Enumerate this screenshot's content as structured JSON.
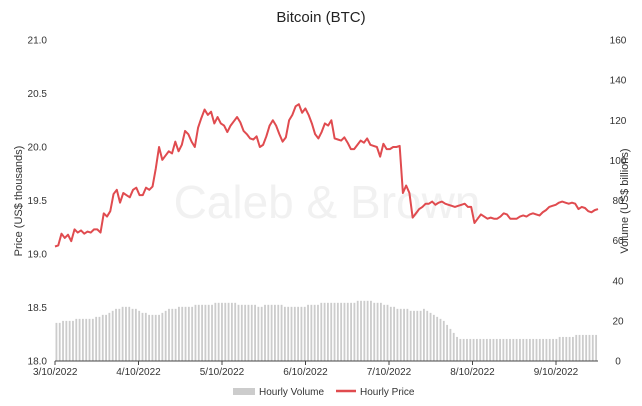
{
  "chart_data": {
    "type": "line",
    "title": "Bitcoin (BTC)",
    "watermark": "Caleb & Brown",
    "ylabel": "Price (US$ thousands)",
    "y2label": "Volume (US$ billions)",
    "ylim": [
      18.0,
      21.0
    ],
    "y2lim": [
      0,
      160
    ],
    "yticks": [
      "18.0",
      "18.5",
      "19.0",
      "19.5",
      "20.0",
      "20.5",
      "21.0"
    ],
    "y2ticks": [
      "0",
      "20",
      "40",
      "60",
      "80",
      "100",
      "120",
      "140",
      "160"
    ],
    "xticks": [
      "3/10/2022",
      "4/10/2022",
      "5/10/2022",
      "6/10/2022",
      "7/10/2022",
      "8/10/2022",
      "9/10/2022"
    ],
    "grid": false,
    "legend_position": "bottom",
    "series": [
      {
        "name": "Hourly Volume",
        "kind": "bar",
        "axis": "right",
        "color": "#cccccc",
        "values": [
          19,
          19,
          20,
          20,
          20,
          20,
          21,
          21,
          21,
          21,
          21,
          21,
          22,
          22,
          23,
          23,
          24,
          25,
          26,
          26,
          27,
          27,
          27,
          26,
          26,
          25,
          24,
          24,
          23,
          23,
          23,
          23,
          24,
          25,
          26,
          26,
          26,
          27,
          27,
          27,
          27,
          27,
          28,
          28,
          28,
          28,
          28,
          28,
          29,
          29,
          29,
          29,
          29,
          29,
          29,
          28,
          28,
          28,
          28,
          28,
          28,
          27,
          27,
          28,
          28,
          28,
          28,
          28,
          28,
          27,
          27,
          27,
          27,
          27,
          27,
          27,
          28,
          28,
          28,
          28,
          29,
          29,
          29,
          29,
          29,
          29,
          29,
          29,
          29,
          29,
          29,
          30,
          30,
          30,
          30,
          30,
          29,
          29,
          29,
          28,
          28,
          27,
          27,
          26,
          26,
          26,
          26,
          25,
          25,
          25,
          25,
          26,
          25,
          24,
          23,
          22,
          21,
          20,
          18,
          16,
          14,
          12,
          11,
          11,
          11,
          11,
          11,
          11,
          11,
          11,
          11,
          11,
          11,
          11,
          11,
          11,
          11,
          11,
          11,
          11,
          11,
          11,
          11,
          11,
          11,
          11,
          11,
          11,
          11,
          11,
          11,
          11,
          12,
          12,
          12,
          12,
          12,
          13,
          13,
          13,
          13,
          13,
          13,
          13
        ]
      },
      {
        "name": "Hourly Price",
        "kind": "line",
        "axis": "left",
        "color": "#e04b4f",
        "values": [
          19.07,
          19.08,
          19.19,
          19.15,
          19.18,
          19.12,
          19.23,
          19.2,
          19.22,
          19.19,
          19.21,
          19.2,
          19.23,
          19.23,
          19.2,
          19.38,
          19.35,
          19.4,
          19.56,
          19.6,
          19.48,
          19.57,
          19.55,
          19.53,
          19.6,
          19.62,
          19.55,
          19.55,
          19.62,
          19.6,
          19.63,
          19.8,
          20.0,
          19.88,
          19.92,
          19.96,
          19.94,
          20.05,
          19.96,
          20.02,
          20.15,
          20.12,
          20.05,
          20.0,
          20.18,
          20.27,
          20.35,
          20.3,
          20.33,
          20.22,
          20.28,
          20.22,
          20.2,
          20.14,
          20.2,
          20.24,
          20.28,
          20.23,
          20.15,
          20.12,
          20.08,
          20.07,
          20.1,
          20.0,
          20.02,
          20.1,
          20.2,
          20.25,
          20.2,
          20.12,
          20.05,
          20.09,
          20.25,
          20.3,
          20.38,
          20.4,
          20.32,
          20.36,
          20.3,
          20.22,
          20.12,
          20.08,
          20.14,
          20.22,
          20.2,
          20.25,
          20.08,
          20.07,
          20.06,
          20.09,
          20.04,
          19.98,
          19.98,
          20.02,
          20.06,
          20.04,
          20.08,
          20.02,
          20.01,
          20.0,
          19.91,
          20.03,
          19.98,
          19.98,
          20.0,
          20.0,
          20.01,
          19.57,
          19.64,
          19.57,
          19.34,
          19.38,
          19.42,
          19.44,
          19.47,
          19.47,
          19.49,
          19.46,
          19.48,
          19.49,
          19.47,
          19.46,
          19.45,
          19.44,
          19.45,
          19.46,
          19.47,
          19.44,
          19.44,
          19.29,
          19.33,
          19.37,
          19.35,
          19.33,
          19.34,
          19.33,
          19.33,
          19.35,
          19.38,
          19.37,
          19.33,
          19.33,
          19.33,
          19.35,
          19.36,
          19.35,
          19.37,
          19.38,
          19.37,
          19.36,
          19.39,
          19.41,
          19.44,
          19.45,
          19.46,
          19.48,
          19.49,
          19.48,
          19.47,
          19.48,
          19.47,
          19.42,
          19.44,
          19.43,
          19.4,
          19.39,
          19.41,
          19.42
        ]
      }
    ]
  }
}
